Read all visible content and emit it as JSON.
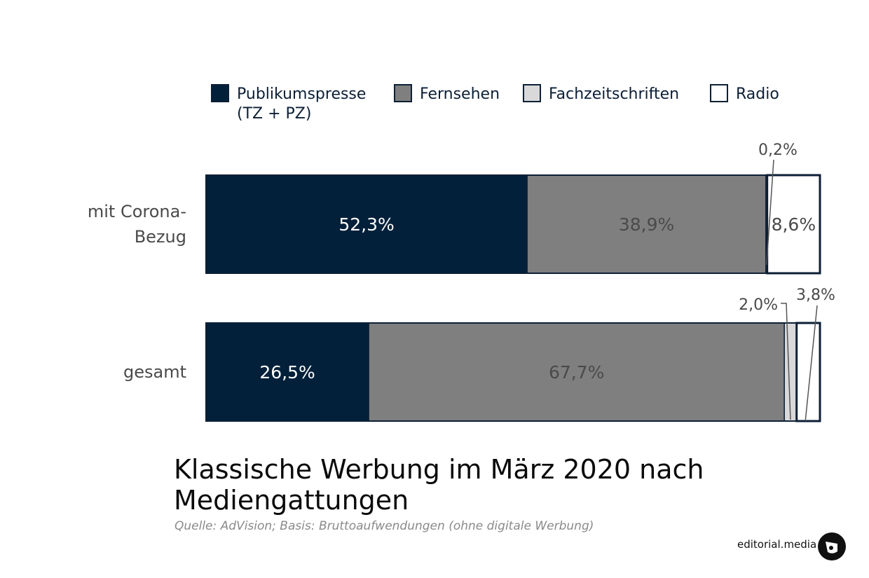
{
  "chart_data": {
    "type": "bar",
    "stacked": true,
    "orientation": "horizontal",
    "normalized_percent": true,
    "title": "Klassische Werbung im März 2020 nach Mediengattungen",
    "subtitle": "Quelle: AdVision; Basis: Bruttoaufwendungen (ohne digitale Werbung)",
    "categories": [
      "mit Corona-\nBezug",
      "gesamt"
    ],
    "series": [
      {
        "name": "Publikumspresse\n(TZ + PZ)",
        "color": "#03203a",
        "values": [
          52.3,
          26.5
        ],
        "labels": [
          "52,3%",
          "26,5%"
        ],
        "label_color": "#ffffff"
      },
      {
        "name": "Fernsehen",
        "color": "#7f7f7f",
        "values": [
          38.9,
          67.7
        ],
        "labels": [
          "38,9%",
          "67,7%"
        ],
        "label_color": "#4a4a4a"
      },
      {
        "name": "Fachzeitschriften",
        "color": "#d9d9d9",
        "values": [
          0.2,
          2.0
        ],
        "labels": [
          "0,2%",
          "2,0%"
        ],
        "label_color": "#4a4a4a"
      },
      {
        "name": "Radio",
        "color": "#ffffff",
        "values": [
          8.6,
          3.8
        ],
        "labels": [
          "8,6%",
          "3,8%"
        ],
        "label_color": "#4a4a4a"
      }
    ],
    "legend": "top"
  },
  "branding": {
    "text": "editorial.media",
    "logo_icon": "editorial-media-logo-icon"
  }
}
